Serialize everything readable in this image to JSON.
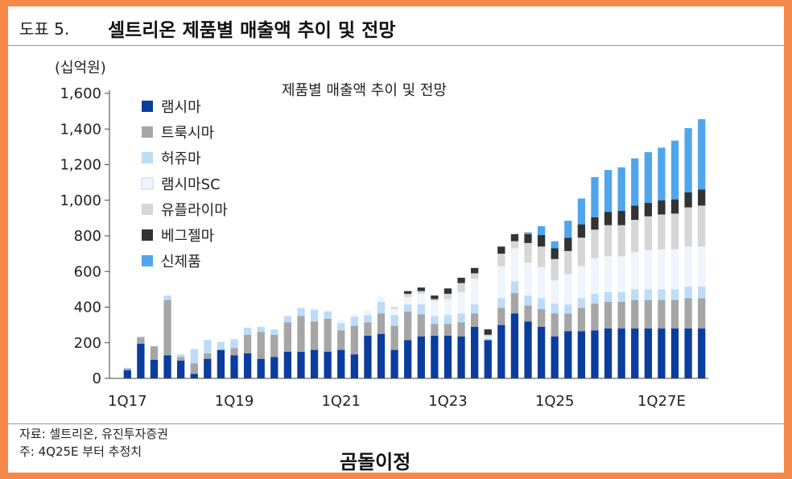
{
  "header": {
    "fig_label": "도표 5.",
    "title": "셀트리온 제품별 매출액 추이 및 전망"
  },
  "footer": {
    "source": "자료: 셀트리온, 유진투자증권",
    "note": "주: 4Q25E 부터 추정치"
  },
  "watermark": "곰돌이정",
  "colors": {
    "램시마": "#0a3d9e",
    "트룩시마": "#a6a6a6",
    "허쥬마": "#bcdcf7",
    "램시마SC": "#eef5fd",
    "유플라이마": "#d6d6d6",
    "베그젤마": "#333333",
    "신제품": "#4fa6ec"
  },
  "chart_data": {
    "type": "bar",
    "stacked": true,
    "title": "제품별 매출액 추이 및 전망",
    "ylabel": "(십억원)",
    "ylim": [
      0,
      1600
    ],
    "yticks": [
      "0",
      "200",
      "400",
      "600",
      "800",
      "1,000",
      "1,200",
      "1,400",
      "1,600"
    ],
    "xtick_labels": [
      "1Q17",
      "1Q19",
      "1Q21",
      "1Q23",
      "1Q25",
      "1Q27E"
    ],
    "xtick_index": [
      0,
      8,
      16,
      24,
      32,
      40
    ],
    "legend_position": "top-left",
    "categories": [
      "1Q17",
      "2Q17",
      "3Q17",
      "4Q17",
      "1Q18",
      "2Q18",
      "3Q18",
      "4Q18",
      "1Q19",
      "2Q19",
      "3Q19",
      "4Q19",
      "1Q20",
      "2Q20",
      "3Q20",
      "4Q20",
      "1Q21",
      "2Q21",
      "3Q21",
      "4Q21",
      "1Q22",
      "2Q22",
      "3Q22",
      "4Q22",
      "1Q23",
      "2Q23",
      "3Q23",
      "4Q23",
      "1Q24",
      "2Q24",
      "3Q24",
      "4Q24",
      "1Q25",
      "2Q25",
      "3Q25",
      "4Q25",
      "1Q26",
      "2Q26",
      "3Q26",
      "4Q26",
      "1Q27",
      "2Q27",
      "3Q27",
      "4Q27"
    ],
    "series": [
      {
        "name": "램시마",
        "values": [
          45,
          195,
          105,
          130,
          100,
          25,
          110,
          160,
          130,
          140,
          110,
          120,
          150,
          150,
          160,
          150,
          160,
          135,
          240,
          250,
          160,
          215,
          235,
          240,
          240,
          235,
          290,
          215,
          300,
          365,
          320,
          290,
          235,
          265,
          265,
          270,
          280,
          280,
          280,
          280,
          280,
          280,
          280,
          280
        ]
      },
      {
        "name": "트룩시마",
        "values": [
          10,
          35,
          75,
          310,
          20,
          60,
          30,
          0,
          40,
          105,
          150,
          125,
          165,
          200,
          160,
          185,
          110,
          160,
          75,
          115,
          135,
          160,
          125,
          65,
          65,
          80,
          75,
          0,
          95,
          115,
          90,
          100,
          130,
          100,
          130,
          150,
          150,
          150,
          160,
          160,
          160,
          160,
          170,
          170
        ]
      },
      {
        "name": "허쥬마",
        "values": [
          5,
          5,
          0,
          25,
          15,
          80,
          75,
          45,
          50,
          40,
          30,
          30,
          35,
          45,
          65,
          40,
          40,
          50,
          40,
          65,
          60,
          40,
          55,
          45,
          50,
          50,
          50,
          10,
          55,
          65,
          55,
          60,
          55,
          50,
          55,
          55,
          55,
          55,
          60,
          60,
          60,
          60,
          65,
          65
        ]
      },
      {
        "name": "램시마SC",
        "values": [
          0,
          0,
          0,
          0,
          0,
          0,
          0,
          0,
          0,
          0,
          0,
          0,
          0,
          5,
          10,
          10,
          20,
          15,
          25,
          30,
          35,
          40,
          60,
          85,
          90,
          120,
          145,
          10,
          180,
          185,
          185,
          175,
          130,
          170,
          180,
          200,
          200,
          200,
          210,
          220,
          225,
          225,
          225,
          225
        ]
      },
      {
        "name": "유플라이마",
        "values": [
          0,
          0,
          0,
          0,
          0,
          0,
          0,
          0,
          0,
          0,
          0,
          0,
          0,
          0,
          0,
          0,
          0,
          0,
          0,
          0,
          10,
          20,
          15,
          10,
          30,
          50,
          30,
          10,
          70,
          40,
          110,
          115,
          120,
          130,
          160,
          160,
          175,
          175,
          180,
          190,
          195,
          200,
          220,
          230
        ]
      },
      {
        "name": "베그젤마",
        "values": [
          0,
          0,
          0,
          0,
          0,
          0,
          0,
          0,
          0,
          0,
          0,
          0,
          0,
          0,
          0,
          0,
          0,
          0,
          0,
          0,
          0,
          15,
          20,
          20,
          30,
          30,
          30,
          30,
          40,
          40,
          50,
          65,
          60,
          75,
          75,
          70,
          75,
          80,
          80,
          75,
          80,
          80,
          85,
          90
        ]
      },
      {
        "name": "신제품",
        "values": [
          0,
          0,
          0,
          0,
          0,
          0,
          0,
          0,
          0,
          0,
          0,
          0,
          0,
          0,
          0,
          0,
          0,
          0,
          0,
          0,
          0,
          0,
          0,
          0,
          0,
          0,
          0,
          0,
          0,
          0,
          10,
          50,
          40,
          95,
          145,
          225,
          235,
          245,
          265,
          285,
          295,
          330,
          360,
          395
        ]
      }
    ]
  }
}
